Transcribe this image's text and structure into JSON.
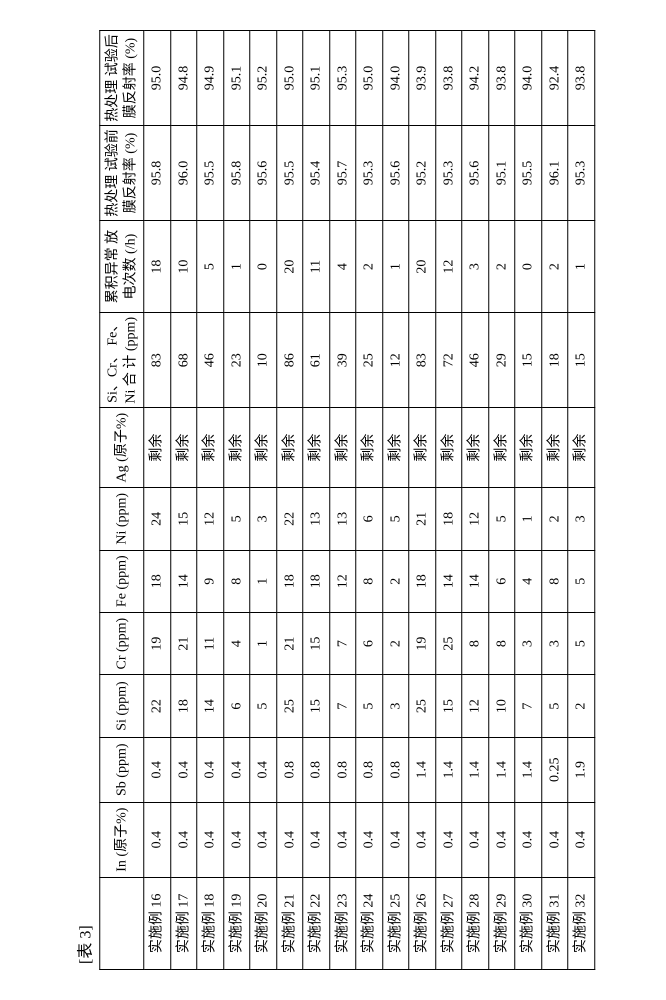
{
  "caption": "[表 3]",
  "table": {
    "columns": [
      {
        "key": "label",
        "header": ""
      },
      {
        "key": "in",
        "header": "In\n(原子%)"
      },
      {
        "key": "sb",
        "header": "Sb\n(ppm)"
      },
      {
        "key": "si",
        "header": "Si\n(ppm)"
      },
      {
        "key": "cr",
        "header": "Cr\n(ppm)"
      },
      {
        "key": "fe",
        "header": "Fe\n(ppm)"
      },
      {
        "key": "ni",
        "header": "Ni\n(ppm)"
      },
      {
        "key": "ag",
        "header": "Ag\n(原子%)"
      },
      {
        "key": "sum",
        "header": "Si、Cr、\nFe、Ni\n合 计\n(ppm)"
      },
      {
        "key": "disc",
        "header": "累积异常\n放电次数\n(/h)"
      },
      {
        "key": "before",
        "header": "热处理\n试验前\n膜反射率\n(%)"
      },
      {
        "key": "after",
        "header": "热处理\n试验后\n膜反射率\n(%)"
      }
    ],
    "rows": [
      {
        "label": "实施例 16",
        "in": "0.4",
        "sb": "0.4",
        "si": "22",
        "cr": "19",
        "fe": "18",
        "ni": "24",
        "ag": "剩余",
        "sum": "83",
        "disc": "18",
        "before": "95.8",
        "after": "95.0"
      },
      {
        "label": "实施例 17",
        "in": "0.4",
        "sb": "0.4",
        "si": "18",
        "cr": "21",
        "fe": "14",
        "ni": "15",
        "ag": "剩余",
        "sum": "68",
        "disc": "10",
        "before": "96.0",
        "after": "94.8"
      },
      {
        "label": "实施例 18",
        "in": "0.4",
        "sb": "0.4",
        "si": "14",
        "cr": "11",
        "fe": "9",
        "ni": "12",
        "ag": "剩余",
        "sum": "46",
        "disc": "5",
        "before": "95.5",
        "after": "94.9"
      },
      {
        "label": "实施例 19",
        "in": "0.4",
        "sb": "0.4",
        "si": "6",
        "cr": "4",
        "fe": "8",
        "ni": "5",
        "ag": "剩余",
        "sum": "23",
        "disc": "1",
        "before": "95.8",
        "after": "95.1"
      },
      {
        "label": "实施例 20",
        "in": "0.4",
        "sb": "0.4",
        "si": "5",
        "cr": "1",
        "fe": "1",
        "ni": "3",
        "ag": "剩余",
        "sum": "10",
        "disc": "0",
        "before": "95.6",
        "after": "95.2"
      },
      {
        "label": "实施例 21",
        "in": "0.4",
        "sb": "0.8",
        "si": "25",
        "cr": "21",
        "fe": "18",
        "ni": "22",
        "ag": "剩余",
        "sum": "86",
        "disc": "20",
        "before": "95.5",
        "after": "95.0"
      },
      {
        "label": "实施例 22",
        "in": "0.4",
        "sb": "0.8",
        "si": "15",
        "cr": "15",
        "fe": "18",
        "ni": "13",
        "ag": "剩余",
        "sum": "61",
        "disc": "11",
        "before": "95.4",
        "after": "95.1"
      },
      {
        "label": "实施例 23",
        "in": "0.4",
        "sb": "0.8",
        "si": "7",
        "cr": "7",
        "fe": "12",
        "ni": "13",
        "ag": "剩余",
        "sum": "39",
        "disc": "4",
        "before": "95.7",
        "after": "95.3"
      },
      {
        "label": "实施例 24",
        "in": "0.4",
        "sb": "0.8",
        "si": "5",
        "cr": "6",
        "fe": "8",
        "ni": "6",
        "ag": "剩余",
        "sum": "25",
        "disc": "2",
        "before": "95.3",
        "after": "95.0"
      },
      {
        "label": "实施例 25",
        "in": "0.4",
        "sb": "0.8",
        "si": "3",
        "cr": "2",
        "fe": "2",
        "ni": "5",
        "ag": "剩余",
        "sum": "12",
        "disc": "1",
        "before": "95.6",
        "after": "94.0"
      },
      {
        "label": "实施例 26",
        "in": "0.4",
        "sb": "1.4",
        "si": "25",
        "cr": "19",
        "fe": "18",
        "ni": "21",
        "ag": "剩余",
        "sum": "83",
        "disc": "20",
        "before": "95.2",
        "after": "93.9"
      },
      {
        "label": "实施例 27",
        "in": "0.4",
        "sb": "1.4",
        "si": "15",
        "cr": "25",
        "fe": "14",
        "ni": "18",
        "ag": "剩余",
        "sum": "72",
        "disc": "12",
        "before": "95.3",
        "after": "93.8"
      },
      {
        "label": "实施例 28",
        "in": "0.4",
        "sb": "1.4",
        "si": "12",
        "cr": "8",
        "fe": "14",
        "ni": "12",
        "ag": "剩余",
        "sum": "46",
        "disc": "3",
        "before": "95.6",
        "after": "94.2"
      },
      {
        "label": "实施例 29",
        "in": "0.4",
        "sb": "1.4",
        "si": "10",
        "cr": "8",
        "fe": "6",
        "ni": "5",
        "ag": "剩余",
        "sum": "29",
        "disc": "2",
        "before": "95.1",
        "after": "93.8"
      },
      {
        "label": "实施例 30",
        "in": "0.4",
        "sb": "1.4",
        "si": "7",
        "cr": "3",
        "fe": "4",
        "ni": "1",
        "ag": "剩余",
        "sum": "15",
        "disc": "0",
        "before": "95.5",
        "after": "94.0"
      },
      {
        "label": "实施例 31",
        "in": "0.4",
        "sb": "0.25",
        "si": "5",
        "cr": "3",
        "fe": "8",
        "ni": "2",
        "ag": "剩余",
        "sum": "18",
        "disc": "2",
        "before": "96.1",
        "after": "92.4"
      },
      {
        "label": "实施例 32",
        "in": "0.4",
        "sb": "1.9",
        "si": "2",
        "cr": "5",
        "fe": "5",
        "ni": "3",
        "ag": "剩余",
        "sum": "15",
        "disc": "1",
        "before": "95.3",
        "after": "93.8"
      }
    ]
  },
  "style": {
    "font_family": "Times New Roman / SimSun",
    "header_fontsize_pt": 10,
    "cell_fontsize_pt": 10,
    "border_color": "#000000",
    "background_color": "#ffffff",
    "text_color": "#000000",
    "rotation_deg": -90
  }
}
